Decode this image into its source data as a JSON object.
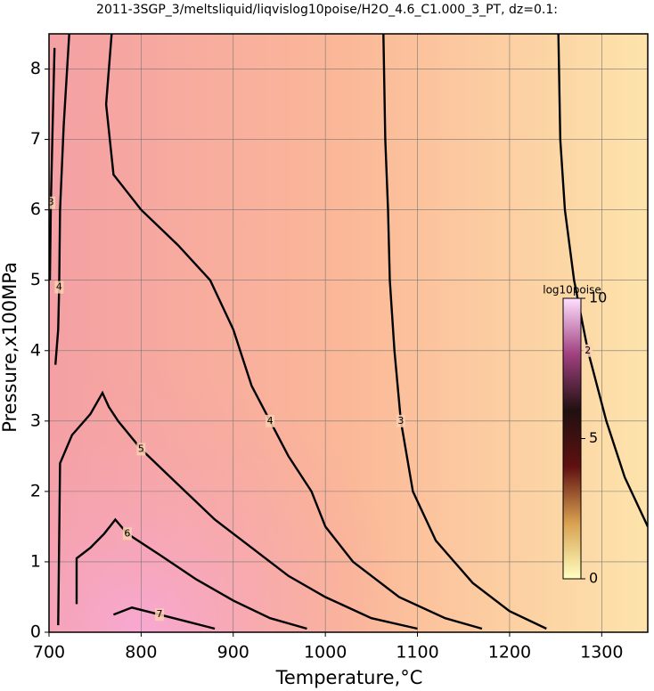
{
  "chart_data": {
    "type": "contour",
    "title": "2011-3SGP_3/meltsliquid/liqvislog10poise/H2O_4.6_C1.000_3_PT, dz=0.1:",
    "x_label": "Temperature,°C",
    "y_label": "Pressure,x100MPa",
    "xlim": [
      700,
      1350
    ],
    "ylim": [
      0,
      8.5
    ],
    "xticks": [
      700,
      800,
      900,
      1000,
      1100,
      1200,
      1300
    ],
    "yticks": [
      0,
      1,
      2,
      3,
      4,
      5,
      6,
      7,
      8
    ],
    "grid": true,
    "background_colors": [
      "#f4a0a4",
      "#fbb898",
      "#fde3ab"
    ],
    "contours": [
      {
        "level": 2,
        "x": [
          1253,
          1255,
          1260,
          1270,
          1285,
          1305,
          1325,
          1350
        ],
        "y": [
          8.5,
          7,
          6,
          5,
          4,
          3,
          2.2,
          1.5
        ]
      },
      {
        "level": 3,
        "x": [
          1063,
          1065,
          1068,
          1070,
          1075,
          1082,
          1095,
          1120,
          1160,
          1200,
          1240
        ],
        "y": [
          8.5,
          7,
          6,
          5,
          4,
          3,
          2,
          1.3,
          0.7,
          0.3,
          0.05
        ]
      },
      {
        "level": 3,
        "x": [
          706,
          704,
          702,
          701
        ],
        "y": [
          8.3,
          7.2,
          6.1,
          5.0
        ]
      },
      {
        "level": 4,
        "x": [
          768,
          762,
          770,
          800,
          840,
          875,
          900,
          920,
          940,
          960,
          985,
          1000,
          1030,
          1080,
          1130,
          1170
        ],
        "y": [
          8.5,
          7.5,
          6.5,
          6,
          5.5,
          5,
          4.3,
          3.5,
          3,
          2.5,
          2,
          1.5,
          1,
          0.5,
          0.2,
          0.05
        ]
      },
      {
        "level": 4,
        "x": [
          722,
          716,
          712,
          711,
          710,
          707
        ],
        "y": [
          8.5,
          7.2,
          6,
          4.9,
          4.3,
          3.8
        ]
      },
      {
        "level": 5,
        "x": [
          710,
          712,
          725,
          745,
          758,
          765,
          775,
          800,
          840,
          880,
          920,
          960,
          1000,
          1050,
          1100
        ],
        "y": [
          0.1,
          2.4,
          2.8,
          3.1,
          3.4,
          3.2,
          3.0,
          2.6,
          2.1,
          1.6,
          1.2,
          0.8,
          0.5,
          0.2,
          0.05
        ]
      },
      {
        "level": 6,
        "x": [
          730,
          730,
          745,
          760,
          772,
          785,
          820,
          860,
          900,
          940,
          980
        ],
        "y": [
          0.4,
          1.05,
          1.2,
          1.4,
          1.6,
          1.4,
          1.1,
          0.75,
          0.45,
          0.2,
          0.05
        ]
      },
      {
        "level": 7,
        "x": [
          770,
          790,
          820,
          850,
          880
        ],
        "y": [
          0.25,
          0.35,
          0.25,
          0.15,
          0.05
        ]
      }
    ],
    "colorbar": {
      "label": "log10poise",
      "range": [
        0,
        10
      ],
      "ticks": [
        0,
        5,
        10
      ],
      "colors": [
        "#ffffc0",
        "#d8a050",
        "#601010",
        "#201010",
        "#a04080",
        "#ffe0ff"
      ]
    }
  }
}
